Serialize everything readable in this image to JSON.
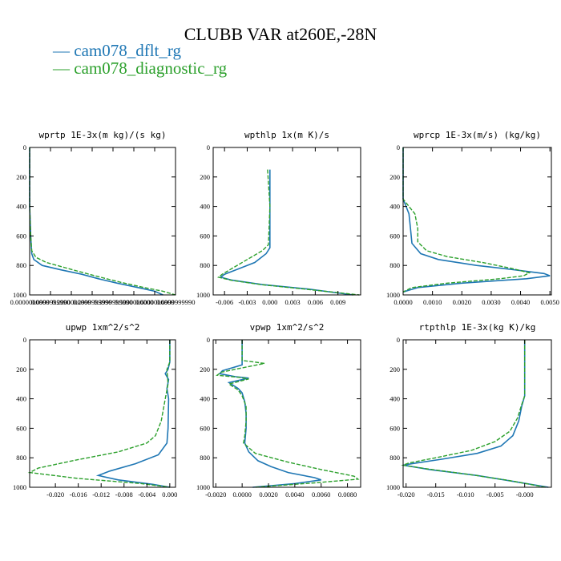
{
  "title": "CLUBB VAR at260E,-28N",
  "legend": [
    {
      "label": "— cam078_dflt_rg",
      "color": "#1f77b4"
    },
    {
      "label": "— cam078_diagnostic_rg",
      "color": "#2ca02c"
    }
  ],
  "colors": {
    "dflt": "#1f77b4",
    "diagnostic": "#2ca02c"
  },
  "chart_data": [
    {
      "type": "line",
      "title": "wprtp  1E-3x(m kg)/(s kg)",
      "xlim": [
        0.0,
        0.7
      ],
      "ylim": [
        1000,
        0
      ],
      "xticks": [
        0.0,
        0.1,
        0.2,
        0.3,
        0.4,
        0.5,
        0.6,
        0.7
      ],
      "xtick_labels": [
        "0.0000000000",
        "0.0999999990",
        "0.2000000000",
        "0.2999999990",
        "0.3999999990",
        "0.5000000000",
        "0.6000000000",
        "0.6999999990"
      ],
      "yticks": [
        0,
        200,
        400,
        600,
        800,
        1000
      ],
      "ytick_labels": [
        "0",
        "200",
        "400",
        "600",
        "800",
        "1000"
      ],
      "series": [
        {
          "name": "cam078_dflt_rg",
          "points": [
            [
              0.0,
              0
            ],
            [
              0.0,
              400
            ],
            [
              0.005,
              600
            ],
            [
              0.01,
              720
            ],
            [
              0.02,
              760
            ],
            [
              0.06,
              800
            ],
            [
              0.15,
              830
            ],
            [
              0.25,
              860
            ],
            [
              0.33,
              890
            ],
            [
              0.42,
              920
            ],
            [
              0.52,
              950
            ],
            [
              0.6,
              975
            ],
            [
              0.64,
              1000
            ]
          ]
        },
        {
          "name": "cam078_diagnostic_rg",
          "points": [
            [
              0.0,
              0
            ],
            [
              0.0,
              400
            ],
            [
              0.005,
              600
            ],
            [
              0.01,
              700
            ],
            [
              0.03,
              745
            ],
            [
              0.08,
              780
            ],
            [
              0.17,
              815
            ],
            [
              0.26,
              850
            ],
            [
              0.34,
              880
            ],
            [
              0.44,
              915
            ],
            [
              0.55,
              950
            ],
            [
              0.64,
              975
            ],
            [
              0.7,
              1000
            ]
          ]
        }
      ]
    },
    {
      "type": "line",
      "title": "wpthlp  1x(m K)/s",
      "xlim": [
        -0.0075,
        0.012
      ],
      "ylim": [
        1000,
        0
      ],
      "xticks": [
        -0.006,
        -0.003,
        0.0,
        0.003,
        0.006,
        0.009
      ],
      "xtick_labels": [
        "-0.006",
        "-0.003",
        "0.000",
        "0.003",
        "0.006",
        "0.009"
      ],
      "yticks": [
        0,
        200,
        400,
        600,
        800,
        1000
      ],
      "ytick_labels": [
        "0",
        "200",
        "400",
        "600",
        "800",
        "1000"
      ],
      "series": [
        {
          "name": "cam078_dflt_rg",
          "points": [
            [
              0.0,
              150
            ],
            [
              0.0,
              400
            ],
            [
              0.0,
              680
            ],
            [
              -0.0005,
              720
            ],
            [
              -0.002,
              780
            ],
            [
              -0.0045,
              830
            ],
            [
              -0.006,
              860
            ],
            [
              -0.0065,
              880
            ],
            [
              -0.005,
              900
            ],
            [
              -0.001,
              930
            ],
            [
              0.005,
              960
            ],
            [
              0.011,
              1000
            ]
          ]
        },
        {
          "name": "cam078_diagnostic_rg",
          "points": [
            [
              -0.0003,
              150
            ],
            [
              0.0,
              400
            ],
            [
              -0.0002,
              660
            ],
            [
              -0.001,
              700
            ],
            [
              -0.003,
              760
            ],
            [
              -0.005,
              820
            ],
            [
              -0.0063,
              860
            ],
            [
              -0.0068,
              880
            ],
            [
              -0.0052,
              900
            ],
            [
              -0.0012,
              930
            ],
            [
              0.0045,
              960
            ],
            [
              0.0118,
              1000
            ]
          ]
        }
      ]
    },
    {
      "type": "line",
      "title": "wprcp  1E-3x(m/s) (kg/kg)",
      "xlim": [
        0.0,
        0.00505
      ],
      "ylim": [
        1000,
        0
      ],
      "xticks": [
        0.0,
        0.001,
        0.002,
        0.003,
        0.004,
        0.005
      ],
      "xtick_labels": [
        "0.0000",
        "0.0010",
        "0.0020",
        "0.0030",
        "0.0040",
        "0.0050"
      ],
      "yticks": [
        0,
        200,
        400,
        600,
        800,
        1000
      ],
      "ytick_labels": [
        "0",
        "200",
        "400",
        "600",
        "800",
        "1000"
      ],
      "series": [
        {
          "name": "cam078_dflt_rg",
          "points": [
            [
              0.0,
              0
            ],
            [
              0.0,
              200
            ],
            [
              0.0,
              350
            ],
            [
              0.0001,
              400
            ],
            [
              0.0002,
              450
            ],
            [
              0.00025,
              550
            ],
            [
              0.0003,
              650
            ],
            [
              0.0006,
              720
            ],
            [
              0.0012,
              760
            ],
            [
              0.0025,
              800
            ],
            [
              0.0038,
              830
            ],
            [
              0.0048,
              855
            ],
            [
              0.005,
              870
            ],
            [
              0.0042,
              890
            ],
            [
              0.002,
              920
            ],
            [
              0.0005,
              950
            ],
            [
              0.0,
              980
            ]
          ]
        },
        {
          "name": "cam078_diagnostic_rg",
          "points": [
            [
              0.0,
              0
            ],
            [
              0.0,
              200
            ],
            [
              0.0,
              350
            ],
            [
              0.0002,
              400
            ],
            [
              0.0004,
              450
            ],
            [
              0.0005,
              550
            ],
            [
              0.0005,
              640
            ],
            [
              0.0008,
              700
            ],
            [
              0.0015,
              740
            ],
            [
              0.0027,
              780
            ],
            [
              0.0037,
              820
            ],
            [
              0.0043,
              850
            ],
            [
              0.0041,
              870
            ],
            [
              0.0033,
              890
            ],
            [
              0.0015,
              920
            ],
            [
              0.0003,
              950
            ],
            [
              0.0,
              980
            ]
          ]
        }
      ]
    },
    {
      "type": "line",
      "title": "upwp  1xm^2/s^2",
      "xlim": [
        -0.0245,
        0.001
      ],
      "ylim": [
        1000,
        0
      ],
      "xticks": [
        -0.02,
        -0.016,
        -0.012,
        -0.008,
        -0.004,
        0.0
      ],
      "xtick_labels": [
        "-0.020",
        "-0.016",
        "-0.012",
        "-0.008",
        "-0.004",
        "0.000"
      ],
      "yticks": [
        0,
        200,
        400,
        600,
        800,
        1000
      ],
      "ytick_labels": [
        "0",
        "200",
        "400",
        "600",
        "800",
        "1000"
      ],
      "series": [
        {
          "name": "cam078_dflt_rg",
          "points": [
            [
              0.0,
              0
            ],
            [
              0.0,
              150
            ],
            [
              -0.0003,
              200
            ],
            [
              -0.0008,
              230
            ],
            [
              -0.0002,
              270
            ],
            [
              -0.0005,
              330
            ],
            [
              -0.0002,
              400
            ],
            [
              -0.0003,
              600
            ],
            [
              -0.0005,
              700
            ],
            [
              -0.002,
              780
            ],
            [
              -0.006,
              840
            ],
            [
              -0.0105,
              890
            ],
            [
              -0.0125,
              920
            ],
            [
              -0.009,
              950
            ],
            [
              -0.003,
              980
            ],
            [
              0.0,
              1000
            ]
          ]
        },
        {
          "name": "cam078_diagnostic_rg",
          "points": [
            [
              0.0,
              0
            ],
            [
              0.0,
              150
            ],
            [
              -0.0005,
              200
            ],
            [
              -0.0003,
              300
            ],
            [
              -0.0008,
              400
            ],
            [
              -0.0015,
              550
            ],
            [
              -0.0025,
              650
            ],
            [
              -0.004,
              700
            ],
            [
              -0.009,
              760
            ],
            [
              -0.017,
              820
            ],
            [
              -0.023,
              870
            ],
            [
              -0.0245,
              900
            ],
            [
              -0.016,
              940
            ],
            [
              -0.005,
              975
            ],
            [
              0.0,
              1000
            ]
          ]
        }
      ]
    },
    {
      "type": "line",
      "title": "vpwp  1xm^2/s^2",
      "xlim": [
        -0.0022,
        0.009
      ],
      "ylim": [
        1000,
        0
      ],
      "xticks": [
        -0.002,
        0.0,
        0.002,
        0.004,
        0.006,
        0.008
      ],
      "xtick_labels": [
        "-0.0020",
        "0.0000",
        "0.0020",
        "0.0040",
        "0.0060",
        "0.0080"
      ],
      "yticks": [
        0,
        200,
        400,
        600,
        800,
        1000
      ],
      "ytick_labels": [
        "0",
        "200",
        "400",
        "600",
        "800",
        "1000"
      ],
      "series": [
        {
          "name": "cam078_dflt_rg",
          "points": [
            [
              0.0,
              0
            ],
            [
              0.0,
              140
            ],
            [
              0.0,
              170
            ],
            [
              -0.0015,
              210
            ],
            [
              -0.0017,
              230
            ],
            [
              -0.0005,
              250
            ],
            [
              0.0005,
              260
            ],
            [
              -0.001,
              290
            ],
            [
              -0.0003,
              330
            ],
            [
              0.0,
              360
            ],
            [
              0.0002,
              420
            ],
            [
              0.0003,
              500
            ],
            [
              0.0003,
              600
            ],
            [
              0.0002,
              700
            ],
            [
              0.0005,
              760
            ],
            [
              0.0012,
              820
            ],
            [
              0.0022,
              860
            ],
            [
              0.0035,
              900
            ],
            [
              0.0055,
              935
            ],
            [
              0.006,
              950
            ],
            [
              0.004,
              975
            ],
            [
              0.0008,
              1000
            ]
          ]
        },
        {
          "name": "cam078_diagnostic_rg",
          "points": [
            [
              0.0,
              0
            ],
            [
              0.0,
              140
            ],
            [
              0.0017,
              160
            ],
            [
              0.0,
              190
            ],
            [
              -0.0016,
              220
            ],
            [
              -0.0019,
              240
            ],
            [
              -0.0002,
              255
            ],
            [
              0.0005,
              265
            ],
            [
              -0.001,
              300
            ],
            [
              -0.0003,
              340
            ],
            [
              0.0,
              380
            ],
            [
              0.0003,
              450
            ],
            [
              0.0003,
              550
            ],
            [
              0.0002,
              650
            ],
            [
              0.0001,
              700
            ],
            [
              0.001,
              770
            ],
            [
              0.0035,
              830
            ],
            [
              0.006,
              880
            ],
            [
              0.0085,
              925
            ],
            [
              0.0088,
              945
            ],
            [
              0.0055,
              970
            ],
            [
              0.001,
              1000
            ]
          ]
        }
      ]
    },
    {
      "type": "line",
      "title": "rtpthlp  1E-3x(kg K)/kg",
      "xlim": [
        -0.0205,
        0.0045
      ],
      "ylim": [
        1000,
        0
      ],
      "xticks": [
        -0.02,
        -0.015,
        -0.01,
        -0.005,
        0.0
      ],
      "xtick_labels": [
        "-0.020",
        "-0.015",
        "-0.010",
        "-0.005",
        "-0.000"
      ],
      "yticks": [
        0,
        200,
        400,
        600,
        800,
        1000
      ],
      "ytick_labels": [
        "0",
        "200",
        "400",
        "600",
        "800",
        "1000"
      ],
      "series": [
        {
          "name": "cam078_dflt_rg",
          "points": [
            [
              0.0,
              0
            ],
            [
              0.0,
              200
            ],
            [
              0.0,
              380
            ],
            [
              -0.0005,
              450
            ],
            [
              -0.001,
              550
            ],
            [
              -0.002,
              650
            ],
            [
              -0.004,
              720
            ],
            [
              -0.008,
              770
            ],
            [
              -0.014,
              810
            ],
            [
              -0.019,
              840
            ],
            [
              -0.0205,
              850
            ],
            [
              -0.016,
              880
            ],
            [
              -0.008,
              920
            ],
            [
              -0.002,
              960
            ],
            [
              0.004,
              1000
            ]
          ]
        },
        {
          "name": "cam078_diagnostic_rg",
          "points": [
            [
              0.0,
              0
            ],
            [
              0.0,
              200
            ],
            [
              0.0,
              380
            ],
            [
              -0.0006,
              450
            ],
            [
              -0.0012,
              530
            ],
            [
              -0.0025,
              620
            ],
            [
              -0.005,
              690
            ],
            [
              -0.009,
              750
            ],
            [
              -0.015,
              800
            ],
            [
              -0.0195,
              835
            ],
            [
              -0.0205,
              850
            ],
            [
              -0.0165,
              875
            ],
            [
              -0.009,
              915
            ],
            [
              -0.0025,
              955
            ],
            [
              0.0035,
              1000
            ]
          ]
        }
      ]
    }
  ]
}
